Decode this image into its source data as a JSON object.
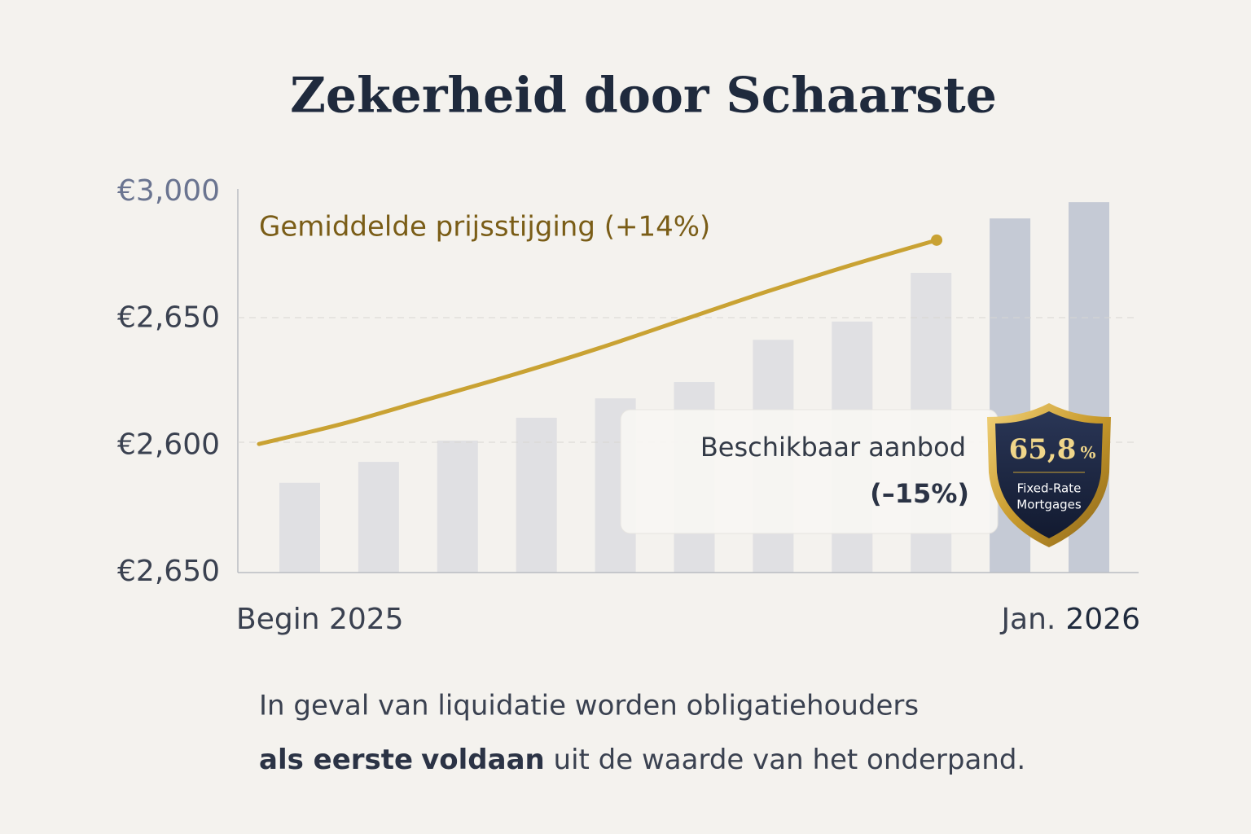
{
  "chart_data": {
    "type": "bar",
    "title": "Zekerheid door Schaarste",
    "y_labels": [
      "€3,000",
      "€2,650",
      "€2,600",
      "€2,650"
    ],
    "ylim": [
      0,
      100
    ],
    "x_labels": {
      "start": "Begin 2025",
      "end_prefix": "Jan.",
      "end_year": "2026"
    },
    "series": [
      {
        "name": "Beschikbaar aanbod",
        "change": "(–15%)",
        "color": "#dcdde1",
        "highlight_color": "#bcc3d0",
        "values": [
          23.6,
          29.1,
          34.7,
          40.7,
          45.8,
          50.1,
          61.2,
          66.0,
          78.8,
          93.1,
          97.4
        ]
      }
    ],
    "line": {
      "name": "Gemiddelde prijsstijging (+14%)",
      "color": "#c9a233",
      "values": [
        33.8,
        39.2,
        45.6,
        52.0,
        58.9,
        66.4,
        73.9,
        80.9,
        87.4
      ]
    },
    "badge": {
      "value": "65,8",
      "unit": "%",
      "label_1": "Fixed-Rate",
      "label_2": "Mortgages"
    },
    "footer": {
      "line_1": "In geval van liquidatie worden obligatiehouders",
      "bold_1": "als eerste",
      "bold_2": "voldaan",
      "rest": " uit de waarde van het onderpand."
    }
  }
}
